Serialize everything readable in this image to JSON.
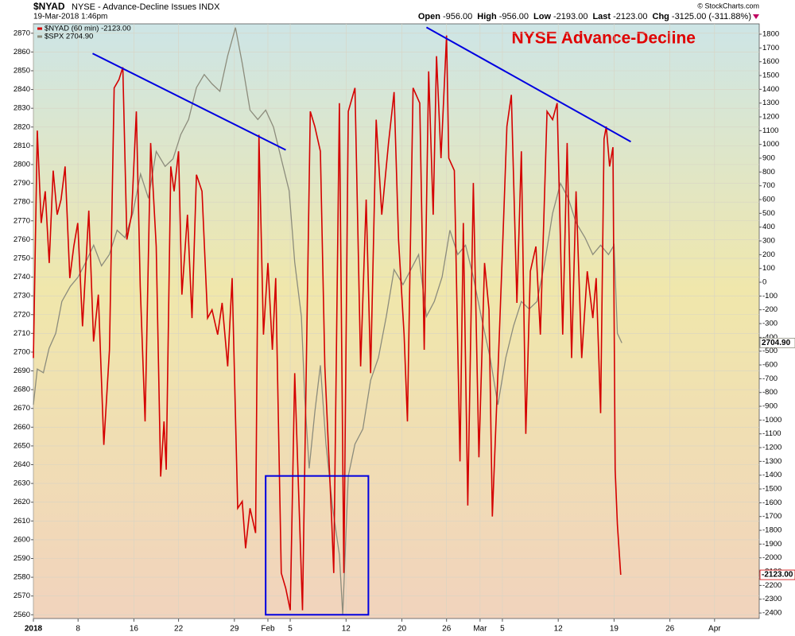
{
  "chart_data": {
    "type": "line",
    "title": "$NYAD",
    "subtitle": "NYSE - Advance-Decline Issues INDX",
    "date": "19-Mar-2018 1:46pm",
    "credit": "© StockCharts.com",
    "quote": [
      {
        "label": "Open",
        "value": "-956.00"
      },
      {
        "label": "High",
        "value": "-956.00"
      },
      {
        "label": "Low",
        "value": "-2193.00"
      },
      {
        "label": "Last",
        "value": "-2123.00"
      },
      {
        "label": "Chg",
        "value": "-3125.00 (-311.88%)"
      }
    ],
    "annotation": "NYSE Advance-Decline",
    "annotation_color": "#e00000",
    "grid": true,
    "xlim": [
      0,
      65
    ],
    "xticks": [
      {
        "value": 0,
        "label": "2018"
      },
      {
        "value": 4,
        "label": "8"
      },
      {
        "value": 9,
        "label": "16"
      },
      {
        "value": 13,
        "label": "22"
      },
      {
        "value": 18,
        "label": "29"
      },
      {
        "value": 21,
        "label": "Feb"
      },
      {
        "value": 23,
        "label": "5"
      },
      {
        "value": 28,
        "label": "12"
      },
      {
        "value": 33,
        "label": "20"
      },
      {
        "value": 37,
        "label": "26"
      },
      {
        "value": 40,
        "label": "Mar"
      },
      {
        "value": 42,
        "label": "5"
      },
      {
        "value": 47,
        "label": "12"
      },
      {
        "value": 52,
        "label": "19"
      },
      {
        "value": 57,
        "label": "26"
      },
      {
        "value": 61,
        "label": "Apr"
      }
    ],
    "ylim": [
      2558,
      2875
    ],
    "yticks": [
      2560,
      2570,
      2580,
      2590,
      2600,
      2610,
      2620,
      2630,
      2640,
      2650,
      2660,
      2670,
      2680,
      2690,
      2700,
      2710,
      2720,
      2730,
      2740,
      2750,
      2760,
      2770,
      2780,
      2790,
      2800,
      2810,
      2820,
      2830,
      2840,
      2850,
      2860,
      2870
    ],
    "y2lim": [
      -2440,
      1875
    ],
    "y2ticks": [
      -2400,
      -2300,
      -2200,
      -2100,
      -2000,
      -1900,
      -1800,
      -1700,
      -1600,
      -1500,
      -1400,
      -1300,
      -1200,
      -1100,
      -1000,
      -900,
      -800,
      -700,
      -600,
      -500,
      -400,
      -300,
      -200,
      -100,
      0,
      100,
      200,
      300,
      400,
      500,
      600,
      700,
      800,
      900,
      1000,
      1100,
      1200,
      1300,
      1400,
      1500,
      1600,
      1700,
      1800
    ],
    "series": [
      {
        "name": "$SPX 2704.90",
        "color": "#8c8c7c",
        "axis": "y",
        "last_label": "2704.90",
        "x": [
          0,
          0.35,
          0.9,
          1.4,
          2.0,
          2.55,
          3.3,
          4.0,
          4.7,
          5.4,
          6.1,
          6.8,
          7.5,
          8.2,
          8.9,
          9.6,
          10.3,
          11.0,
          11.8,
          12.5,
          13.2,
          13.9,
          14.6,
          15.3,
          16.0,
          16.7,
          17.4,
          18.1,
          18.7,
          19.4,
          20.1,
          20.8,
          21.5,
          22.2,
          22.9,
          23.4,
          24.0,
          24.3,
          24.7,
          25.2,
          25.7,
          26.2,
          26.8,
          27.4,
          27.7,
          28.2,
          28.8,
          29.5,
          30.2,
          30.9,
          31.6,
          32.3,
          33.1,
          33.8,
          34.5,
          35.2,
          35.9,
          36.6,
          37.3,
          38.0,
          38.7,
          39.4,
          40.1,
          40.9,
          41.6,
          42.3,
          43.0,
          43.7,
          44.4,
          45.1,
          45.8,
          46.5,
          47.2,
          47.9,
          48.6,
          49.4,
          50.1,
          50.8,
          51.5,
          52.0,
          52.3,
          52.7
        ],
        "values": [
          2672,
          2691,
          2689,
          2702,
          2710,
          2727,
          2735,
          2740,
          2748,
          2757,
          2746,
          2752,
          2765,
          2761,
          2774,
          2795,
          2782,
          2807,
          2799,
          2803,
          2816,
          2824,
          2841,
          2848,
          2843,
          2839,
          2858,
          2873,
          2854,
          2829,
          2824,
          2829,
          2820,
          2803,
          2786,
          2748,
          2719,
          2676,
          2638,
          2668,
          2693,
          2651,
          2617,
          2592,
          2560,
          2634,
          2651,
          2659,
          2685,
          2697,
          2719,
          2744,
          2736,
          2744,
          2752,
          2719,
          2727,
          2740,
          2765,
          2752,
          2757,
          2740,
          2719,
          2697,
          2672,
          2697,
          2714,
          2727,
          2723,
          2727,
          2748,
          2774,
          2790,
          2782,
          2769,
          2761,
          2752,
          2757,
          2752,
          2757,
          2710,
          2704.9
        ]
      },
      {
        "name": "$NYAD (60 min) -2123.00",
        "color": "#d40000",
        "axis": "y2",
        "last_label": "-2123.00",
        "x": [
          0,
          0.35,
          0.7,
          1.06,
          1.42,
          1.77,
          2.13,
          2.48,
          2.84,
          3.26,
          3.62,
          3.97,
          4.4,
          4.96,
          5.39,
          5.82,
          6.31,
          6.81,
          7.23,
          7.66,
          8.01,
          8.37,
          8.79,
          9.22,
          9.57,
          10.0,
          10.5,
          11.0,
          11.4,
          11.7,
          11.9,
          12.3,
          12.6,
          13.0,
          13.3,
          13.8,
          14.2,
          14.6,
          15.1,
          15.6,
          16.0,
          16.5,
          16.9,
          17.4,
          17.8,
          18.3,
          18.7,
          19.0,
          19.4,
          19.9,
          20.2,
          20.6,
          21.0,
          21.4,
          21.7,
          22.2,
          22.6,
          23.0,
          23.4,
          23.8,
          24.1,
          24.8,
          25.2,
          25.7,
          26.1,
          26.7,
          26.9,
          27.4,
          27.8,
          28.2,
          28.8,
          29.3,
          29.8,
          30.2,
          30.7,
          31.2,
          31.8,
          32.3,
          32.7,
          33.2,
          33.5,
          34.0,
          34.6,
          35.0,
          35.4,
          35.8,
          36.1,
          36.5,
          37.0,
          37.2,
          37.7,
          38.2,
          38.5,
          38.9,
          39.4,
          39.9,
          40.4,
          40.8,
          41.1,
          41.6,
          42.1,
          42.4,
          42.8,
          43.3,
          43.7,
          44.1,
          44.5,
          45.0,
          45.4,
          46.0,
          46.5,
          46.9,
          47.4,
          47.8,
          48.2,
          48.6,
          49.1,
          49.6,
          50.1,
          50.4,
          50.8,
          51.1,
          51.3,
          51.6,
          51.9,
          52.1,
          52.3,
          52.6
        ],
        "values": [
          -550,
          1100,
          430,
          660,
          140,
          810,
          490,
          600,
          840,
          30,
          260,
          430,
          -320,
          520,
          -430,
          -90,
          -1180,
          -490,
          1410,
          1470,
          1560,
          310,
          490,
          1240,
          -30,
          -1010,
          1010,
          260,
          -1410,
          -1010,
          -1360,
          840,
          660,
          950,
          -90,
          490,
          -260,
          780,
          660,
          -260,
          -200,
          -380,
          -150,
          -610,
          30,
          -1640,
          -1590,
          -1930,
          -1640,
          -1820,
          1070,
          -380,
          140,
          -490,
          30,
          -2110,
          -2220,
          -2380,
          -660,
          -1640,
          -2380,
          1240,
          1130,
          950,
          -610,
          -1700,
          -2110,
          1300,
          -2110,
          1240,
          1410,
          -610,
          600,
          -660,
          1180,
          490,
          1010,
          1380,
          310,
          -380,
          -1010,
          1410,
          1300,
          -490,
          1530,
          490,
          1640,
          900,
          1790,
          900,
          810,
          -1300,
          430,
          -1620,
          720,
          -1270,
          140,
          -200,
          -1700,
          -660,
          430,
          1130,
          1360,
          -150,
          950,
          -1100,
          80,
          260,
          -380,
          1240,
          1180,
          1300,
          -380,
          1010,
          -550,
          660,
          -550,
          80,
          -260,
          30,
          -950,
          1040,
          1130,
          840,
          980,
          -1360,
          -1760,
          -2123
        ]
      }
    ],
    "trendlines": [
      {
        "color": "#0000e0",
        "axis": "y2",
        "x": [
          5.3,
          22.6
        ],
        "values": [
          1660,
          960
        ]
      },
      {
        "color": "#0000e0",
        "axis": "y2",
        "x": [
          35.2,
          53.5
        ],
        "values": [
          1850,
          1020
        ]
      }
    ],
    "box": {
      "color": "#0000e0",
      "axis": "y",
      "x": [
        20.8,
        30.0
      ],
      "y": [
        2560,
        2634
      ]
    }
  }
}
